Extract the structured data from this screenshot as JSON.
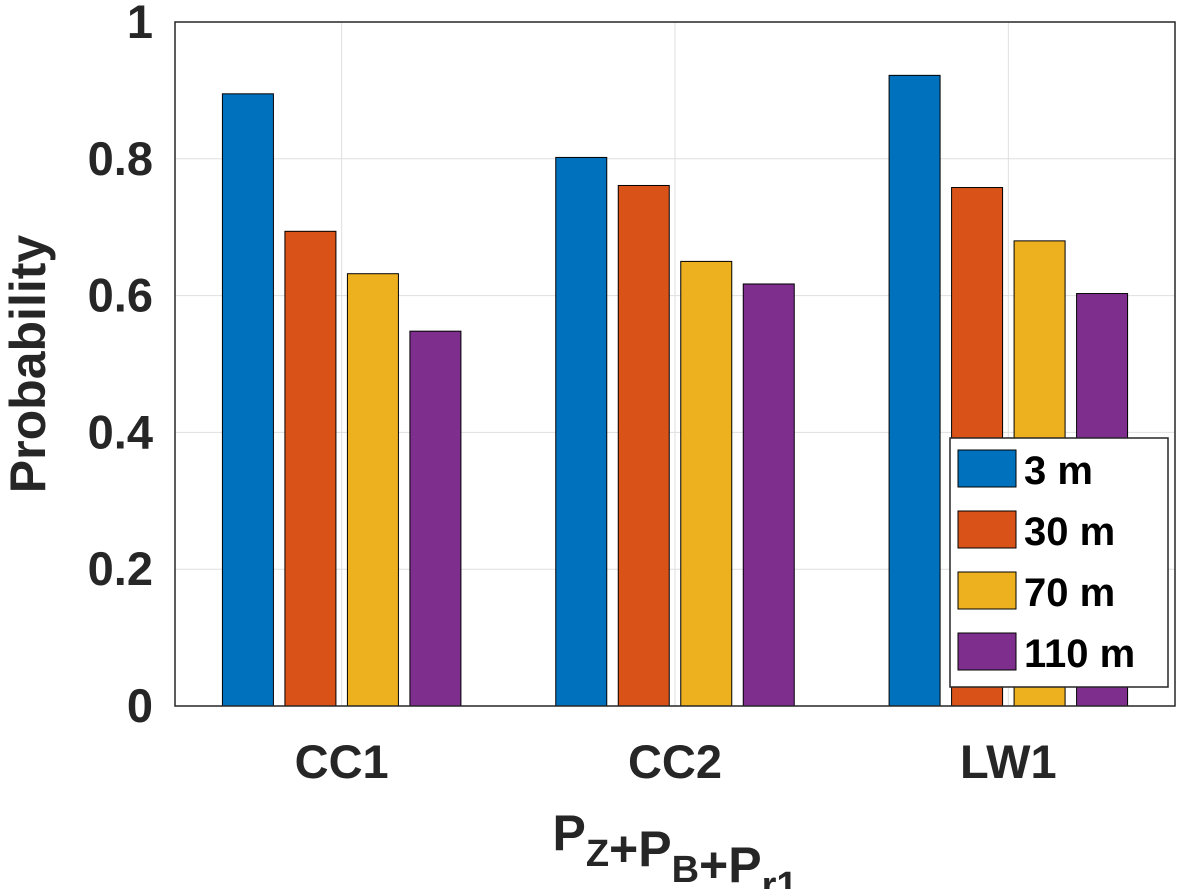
{
  "chart_data": {
    "type": "bar",
    "categories": [
      "CC1",
      "CC2",
      "LW1"
    ],
    "series": [
      {
        "name": "3 m",
        "values": [
          0.895,
          0.802,
          0.922
        ],
        "color": "#0072BD"
      },
      {
        "name": "30 m",
        "values": [
          0.694,
          0.761,
          0.758
        ],
        "color": "#D95319"
      },
      {
        "name": "70 m",
        "values": [
          0.632,
          0.65,
          0.68
        ],
        "color": "#EDB120"
      },
      {
        "name": "110 m",
        "values": [
          0.548,
          0.617,
          0.603
        ],
        "color": "#7E2F8E"
      }
    ],
    "xlabel": {
      "parts": [
        {
          "text": "P",
          "sub": "Z"
        },
        {
          "text": "+P",
          "sub": "B"
        },
        {
          "text": "+P",
          "sub": "r1"
        }
      ]
    },
    "ylabel": "Probability",
    "ylim": [
      0,
      1
    ],
    "yticks": [
      0,
      0.2,
      0.4,
      0.6,
      0.8,
      1
    ],
    "ytick_labels": [
      "0",
      "0.2",
      "0.4",
      "0.6",
      "0.8",
      "1"
    ],
    "grid": true,
    "legend_position": "bottom-right",
    "grid_color": "#dfdfdf",
    "axis_color": "#262626",
    "text_color": "#262626"
  }
}
